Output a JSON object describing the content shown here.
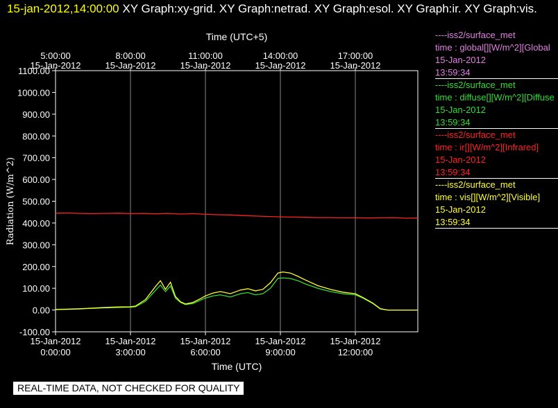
{
  "title": {
    "timestamp": "15-jan-2012,14:00:00",
    "graphs": "XY Graph:xy-grid.  XY Graph:netrad.  XY Graph:esol.  XY Graph:ir.  XY Graph:vis."
  },
  "legend": [
    {
      "source": "----iss2/surface_met",
      "field": "time : global[][W/m^2][Global",
      "date": "15-Jan-2012",
      "time": "13:59:34",
      "color": "#e080e0"
    },
    {
      "source": "----iss2/surface_met",
      "field": "time : diffuse[][W/m^2][Diffuse",
      "date": "15-Jan-2012",
      "time": "13:59:34",
      "color": "#33dd33"
    },
    {
      "source": "----iss2/surface_met",
      "field": "time : ir[][W/m^2][Infrared]",
      "date": "15-Jan-2012",
      "time": "13:59:34",
      "color": "#ff2222"
    },
    {
      "source": "----iss2/surface_met",
      "field": "time : vis[][W/m^2][Visible]",
      "date": "15-Jan-2012",
      "time": "13:59:34",
      "color": "#ffff33"
    }
  ],
  "footer_note": "REAL-TIME DATA, NOT CHECKED FOR QUALITY",
  "chart_data": {
    "type": "line",
    "ylabel": "Radiation (W/m^2)",
    "xlabel": "Time (UTC)",
    "x2label": "Time (UTC+5)",
    "ylim": [
      -100,
      1100
    ],
    "xlim_hours_utc": [
      0,
      14.5
    ],
    "y_ticks": [
      "1100.00",
      "1000.00",
      "900.00",
      "800.00",
      "700.00",
      "600.00",
      "500.00",
      "400.00",
      "300.00",
      "200.00",
      "100.00",
      "0.00",
      "-100.00"
    ],
    "x_ticks_bottom": [
      {
        "date": "15-Jan-2012",
        "time": "0:00:00"
      },
      {
        "date": "15-Jan-2012",
        "time": "3:00:00"
      },
      {
        "date": "15-Jan-2012",
        "time": "6:00:00"
      },
      {
        "date": "15-Jan-2012",
        "time": "9:00:00"
      },
      {
        "date": "15-Jan-2012",
        "time": "12:00:00"
      }
    ],
    "x_ticks_top": [
      {
        "time": "5:00:00",
        "date": "15-Jan-2012"
      },
      {
        "time": "8:00:00",
        "date": "15-Jan-2012"
      },
      {
        "time": "11:00:00",
        "date": "15-Jan-2012"
      },
      {
        "time": "14:00:00",
        "date": "15-Jan-2012"
      },
      {
        "time": "17:00:00",
        "date": "15-Jan-2012"
      }
    ],
    "grid": true,
    "series": [
      {
        "name": "ir",
        "color": "#ff2222",
        "x": [
          0,
          0.5,
          1,
          1.5,
          2,
          2.5,
          3,
          3.5,
          4,
          4.5,
          5,
          5.5,
          6,
          6.5,
          7,
          7.5,
          8,
          8.5,
          9,
          9.5,
          10,
          10.5,
          11,
          11.5,
          12,
          12.5,
          13,
          13.5,
          14,
          14.5
        ],
        "y": [
          445,
          446,
          444,
          443,
          444,
          445,
          443,
          444,
          442,
          444,
          441,
          443,
          440,
          438,
          437,
          434,
          432,
          430,
          428,
          427,
          426,
          425,
          425,
          424,
          424,
          423,
          424,
          425,
          422,
          423
        ]
      },
      {
        "name": "diffuse",
        "color": "#33dd33",
        "x": [
          0,
          0.5,
          1,
          1.5,
          2,
          2.5,
          3,
          3.2,
          3.6,
          4,
          4.2,
          4.4,
          4.6,
          4.8,
          5,
          5.2,
          5.5,
          5.8,
          6,
          6.3,
          6.6,
          7,
          7.4,
          7.7,
          8,
          8.3,
          8.6,
          8.9,
          9.1,
          9.4,
          9.7,
          10,
          10.5,
          11,
          11.5,
          12,
          12.3,
          12.7,
          13,
          13.3,
          13.6,
          14,
          14.5
        ],
        "y": [
          2,
          3,
          5,
          8,
          10,
          12,
          13,
          15,
          40,
          90,
          115,
          85,
          110,
          55,
          35,
          25,
          30,
          45,
          55,
          65,
          70,
          60,
          75,
          80,
          70,
          75,
          100,
          145,
          148,
          145,
          135,
          120,
          100,
          85,
          75,
          70,
          55,
          30,
          5,
          0,
          0,
          0,
          0
        ]
      },
      {
        "name": "vis",
        "color": "#ffff33",
        "x": [
          0,
          0.5,
          1,
          1.5,
          2,
          2.5,
          3,
          3.2,
          3.6,
          4,
          4.2,
          4.4,
          4.6,
          4.8,
          5,
          5.2,
          5.5,
          5.8,
          6,
          6.3,
          6.6,
          7,
          7.4,
          7.7,
          8,
          8.3,
          8.6,
          8.9,
          9.1,
          9.4,
          9.7,
          10,
          10.5,
          11,
          11.5,
          12,
          12.3,
          12.7,
          13,
          13.3,
          13.6,
          14,
          14.5
        ],
        "y": [
          3,
          4,
          6,
          9,
          12,
          14,
          15,
          18,
          48,
          108,
          135,
          95,
          128,
          62,
          38,
          28,
          35,
          52,
          65,
          78,
          85,
          75,
          92,
          98,
          88,
          95,
          125,
          170,
          175,
          170,
          155,
          138,
          112,
          95,
          82,
          75,
          58,
          32,
          6,
          0,
          0,
          0,
          0
        ]
      }
    ]
  }
}
